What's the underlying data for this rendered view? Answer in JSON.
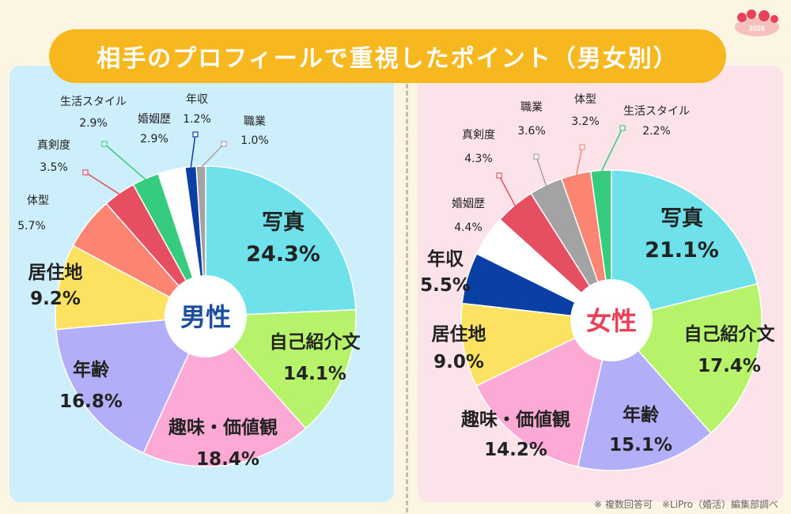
{
  "title": "相手のプロフィールで重視したポイント（男女別）",
  "note": "※ 複数回答可　※LiPro（婚活）編集部調べ",
  "logo_text": "2026",
  "chart_data": [
    {
      "type": "pie",
      "center_label": "男性",
      "center_color": "#1e4f9c",
      "slices": [
        {
          "label": "写真",
          "value": 24.3,
          "display": "24.3%",
          "color": "#6ee1ea"
        },
        {
          "label": "自己紹介文",
          "value": 14.1,
          "display": "14.1%",
          "color": "#b6f36a"
        },
        {
          "label": "趣味・価値観",
          "value": 18.4,
          "display": "18.4%",
          "color": "#fca9d5"
        },
        {
          "label": "年齢",
          "value": 16.8,
          "display": "16.8%",
          "color": "#b2aef7"
        },
        {
          "label": "居住地",
          "value": 9.2,
          "display": "9.2%",
          "color": "#fde161"
        },
        {
          "label": "体型",
          "value": 5.7,
          "display": "5.7%",
          "color": "#fc8473"
        },
        {
          "label": "真剣度",
          "value": 3.5,
          "display": "3.5%",
          "color": "#e64f62"
        },
        {
          "label": "生活スタイル",
          "value": 2.9,
          "display": "2.9%",
          "color": "#36cc80"
        },
        {
          "label": "婚姻歴",
          "value": 2.9,
          "display": "2.9%",
          "color": "#ffffff"
        },
        {
          "label": "年収",
          "value": 1.2,
          "display": "1.2%",
          "color": "#0a3fa6"
        },
        {
          "label": "職業",
          "value": 1.0,
          "display": "1.0%",
          "color": "#a3a3a3"
        }
      ]
    },
    {
      "type": "pie",
      "center_label": "女性",
      "center_color": "#e8415a",
      "slices": [
        {
          "label": "写真",
          "value": 21.1,
          "display": "21.1%",
          "color": "#6ee1ea"
        },
        {
          "label": "自己紹介文",
          "value": 17.4,
          "display": "17.4%",
          "color": "#b6f36a"
        },
        {
          "label": "年齢",
          "value": 15.1,
          "display": "15.1%",
          "color": "#b2aef7"
        },
        {
          "label": "趣味・価値観",
          "value": 14.2,
          "display": "14.2%",
          "color": "#fca9d5"
        },
        {
          "label": "居住地",
          "value": 9.0,
          "display": "9.0%",
          "color": "#fde161"
        },
        {
          "label": "年収",
          "value": 5.5,
          "display": "5.5%",
          "color": "#0a3fa6"
        },
        {
          "label": "婚姻歴",
          "value": 4.4,
          "display": "4.4%",
          "color": "#ffffff"
        },
        {
          "label": "真剣度",
          "value": 4.3,
          "display": "4.3%",
          "color": "#e64f62"
        },
        {
          "label": "職業",
          "value": 3.6,
          "display": "3.6%",
          "color": "#a3a3a3"
        },
        {
          "label": "体型",
          "value": 3.2,
          "display": "3.2%",
          "color": "#fc8473"
        },
        {
          "label": "生活スタイル",
          "value": 2.2,
          "display": "2.2%",
          "color": "#36cc80"
        }
      ]
    }
  ]
}
